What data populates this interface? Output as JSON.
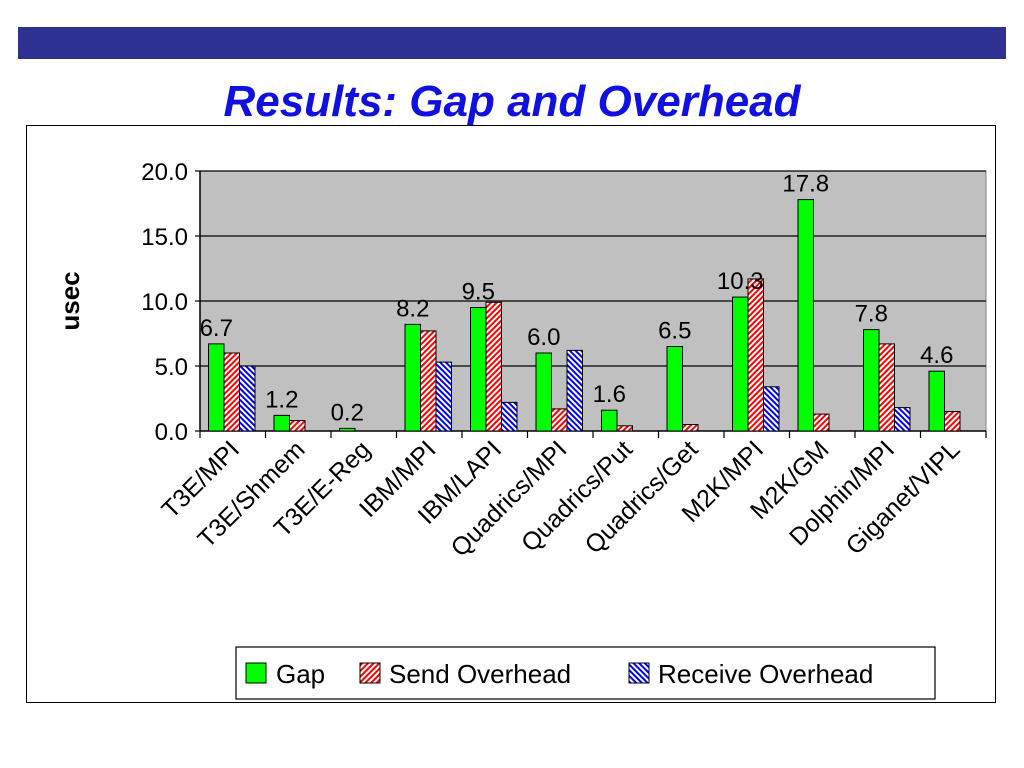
{
  "slide": {
    "title": "Results: Gap and Overhead"
  },
  "colors": {
    "banner": "#2e3192",
    "title": "#1010e0",
    "plot_background": "#c0c0c0",
    "gap": "#00ff00",
    "send_overhead": "#ff0000",
    "receive_overhead": "#0000ff"
  },
  "chart_data": {
    "type": "bar",
    "ylabel": "usec",
    "xlabel": "",
    "ylim": [
      0,
      20
    ],
    "yticks": [
      "0.0",
      "5.0",
      "10.0",
      "15.0",
      "20.0"
    ],
    "grid": "horizontal",
    "legend_position": "bottom-right",
    "categories": [
      "T3E/MPI",
      "T3E/Shmem",
      "T3E/E-Reg",
      "IBM/MPI",
      "IBM/LAPI",
      "Quadrics/MPI",
      "Quadrics/Put",
      "Quadrics/Get",
      "M2K/MPI",
      "M2K/GM",
      "Dolphin/MPI",
      "Giganet/VIPL"
    ],
    "series": [
      {
        "name": "Gap",
        "values": [
          6.7,
          1.2,
          0.2,
          8.2,
          9.5,
          6.0,
          1.6,
          6.5,
          10.3,
          17.8,
          7.8,
          4.6
        ]
      },
      {
        "name": "Send Overhead",
        "values": [
          6.0,
          0.8,
          0.0,
          7.7,
          9.9,
          1.7,
          0.4,
          0.5,
          11.7,
          1.3,
          6.7,
          1.5
        ]
      },
      {
        "name": "Receive Overhead",
        "values": [
          5.0,
          0.0,
          0.0,
          5.3,
          2.2,
          6.2,
          0.0,
          0.0,
          3.4,
          0.0,
          1.8,
          0.0
        ]
      }
    ],
    "data_labels": [
      "6.7",
      "1.2",
      "0.2",
      "8.2",
      "9.5",
      "6.0",
      "1.6",
      "6.5",
      "10.3",
      "17.8",
      "7.8",
      "4.6"
    ]
  }
}
